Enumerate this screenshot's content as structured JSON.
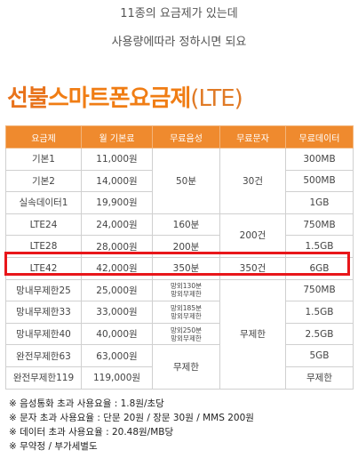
{
  "intro": {
    "line1": "11종의 요금제가 있는데",
    "line2": "사용량에따라 정하시면 되요"
  },
  "title": {
    "prefix": "선불",
    "highlight": "스마트폰요금제",
    "suffix": "(LTE)"
  },
  "table": {
    "headers": [
      "요금제",
      "월 기본료",
      "무료음성",
      "무료문자",
      "무료데이터"
    ],
    "rows": [
      {
        "name": "기본1",
        "fee": "11,000원",
        "data": "300MB"
      },
      {
        "name": "기본2",
        "fee": "14,000원",
        "data": "500MB"
      },
      {
        "name": "실속데이터1",
        "fee": "19,900원",
        "data": "1GB"
      },
      {
        "name": "LTE24",
        "fee": "24,000원",
        "voice": "160분",
        "data": "750MB"
      },
      {
        "name": "LTE28",
        "fee": "28,000원",
        "voice": "200분",
        "data": "1.5GB"
      },
      {
        "name": "LTE42",
        "fee": "42,000원",
        "voice": "350분",
        "sms": "350건",
        "data": "6GB"
      },
      {
        "name": "망내무제한25",
        "fee": "25,000원",
        "voice_lines": [
          "망외130분",
          "망외무제한"
        ],
        "data": "750MB"
      },
      {
        "name": "망내무제한33",
        "fee": "33,000원",
        "voice_lines": [
          "망외185분",
          "망외무제한"
        ],
        "data": "1.5GB"
      },
      {
        "name": "망내무제한40",
        "fee": "40,000원",
        "voice_lines": [
          "망외250분",
          "망외무제한"
        ],
        "data": "2.5GB"
      },
      {
        "name": "완전무제한63",
        "fee": "63,000원",
        "data": "5GB"
      },
      {
        "name": "완전무제한119",
        "fee": "119,000원",
        "data": "무제한"
      }
    ],
    "merged": {
      "voice_basic": "50분",
      "sms_basic": "30건",
      "sms_lte": "200건",
      "sms_unlimited": "무제한",
      "voice_unlimited": "무제한"
    }
  },
  "notes": [
    "※ 음성통화 초과 사용요율 : 1.8원/초당",
    "※ 문자 초과 사용요율 : 단문 20원 / 장문 30원 / MMS 200원",
    "※ 데이터 초과 사용요율 : 20.48원/MB당",
    "※ 무약정 / 부가세별도"
  ],
  "colors": {
    "header_bg": "#ef8a2e",
    "title": "#e8731c",
    "highlight_border": "#e8161a"
  }
}
